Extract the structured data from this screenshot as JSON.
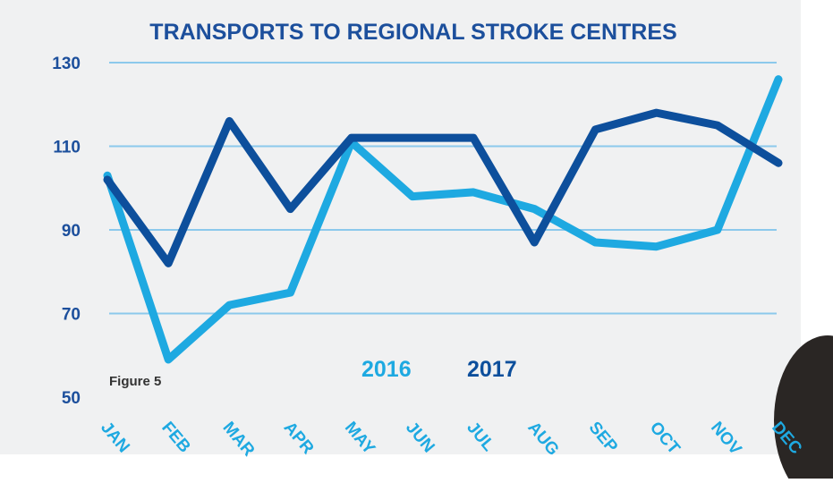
{
  "chart_data": {
    "type": "line",
    "title": "TRANSPORTS TO REGIONAL STROKE CENTRES",
    "annotation": "Figure 5",
    "categories": [
      "JAN",
      "FEB",
      "MAR",
      "APR",
      "MAY",
      "JUN",
      "JUL",
      "AUG",
      "SEP",
      "OCT",
      "NOV",
      "DEC"
    ],
    "series": [
      {
        "name": "2016",
        "color": "#1ea9e1",
        "values": [
          103,
          59,
          72,
          75,
          111,
          98,
          99,
          95,
          87,
          86,
          90,
          126
        ]
      },
      {
        "name": "2017",
        "color": "#0d4f9c",
        "values": [
          102,
          82,
          116,
          95,
          112,
          112,
          112,
          87,
          114,
          118,
          115,
          106
        ]
      }
    ],
    "ylim": [
      50,
      130
    ],
    "yticks": [
      50,
      70,
      90,
      110,
      130
    ],
    "grid": true
  }
}
